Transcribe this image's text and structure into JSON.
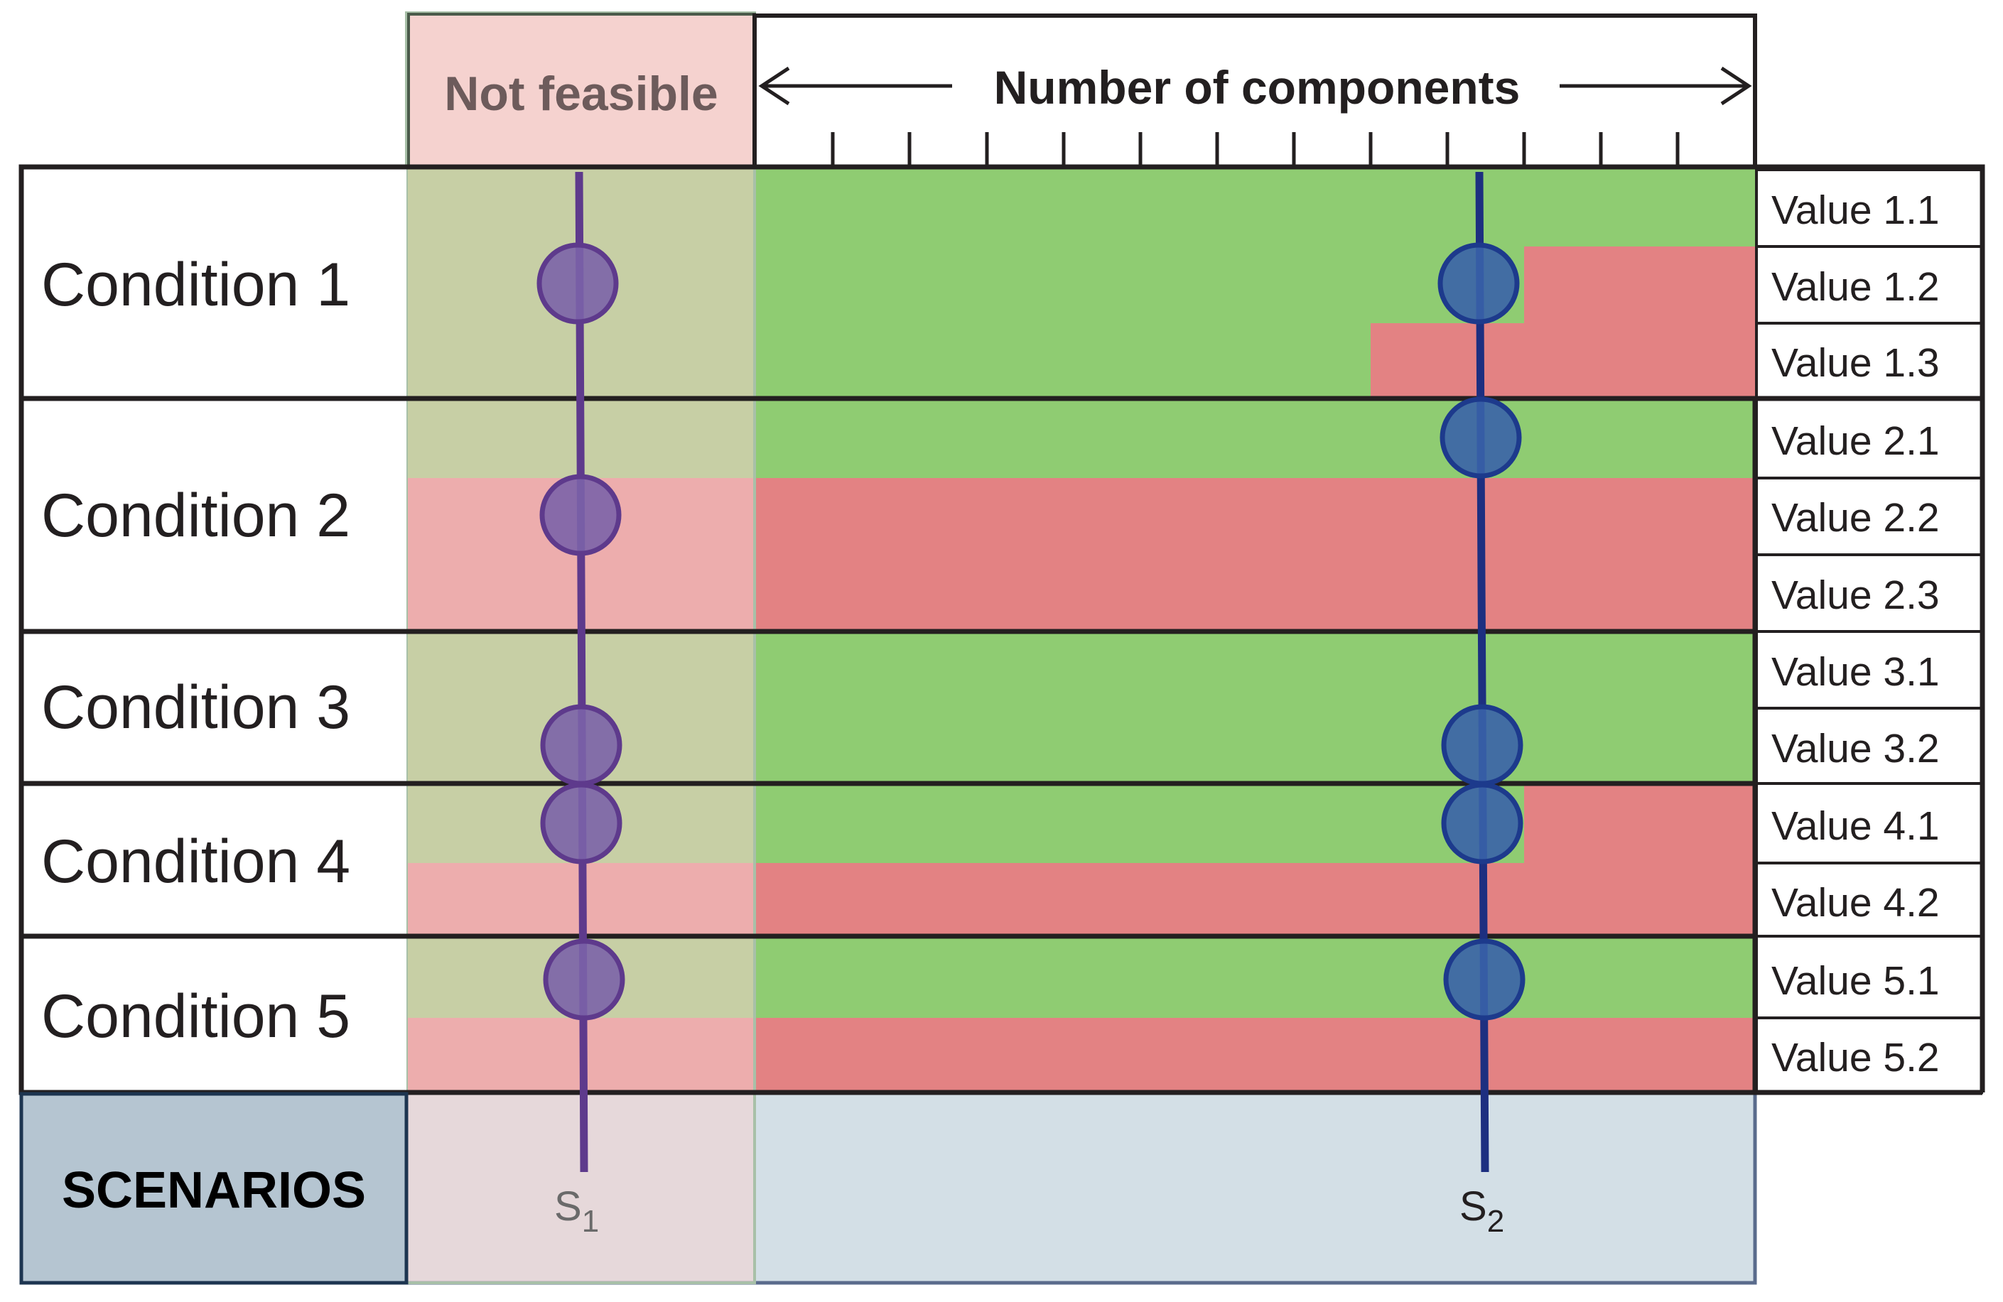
{
  "header": {
    "not_feasible": "Not feasible",
    "axis_label": "Number of components"
  },
  "conditions": [
    {
      "label": "Condition 1",
      "values": [
        "Value 1.1",
        "Value 1.2",
        "Value 1.3"
      ]
    },
    {
      "label": "Condition 2",
      "values": [
        "Value 2.1",
        "Value 2.2",
        "Value 2.3"
      ]
    },
    {
      "label": "Condition 3",
      "values": [
        "Value 3.1",
        "Value 3.2"
      ]
    },
    {
      "label": "Condition 4",
      "values": [
        "Value 4.1",
        "Value 4.2"
      ]
    },
    {
      "label": "Condition 5",
      "values": [
        "Value 5.1",
        "Value 5.2"
      ]
    }
  ],
  "scenarios": {
    "label": "SCENARIOS",
    "s1": {
      "base": "S",
      "sub": "1"
    },
    "s2": {
      "base": "S",
      "sub": "2"
    }
  },
  "colors": {
    "feasible": "#8fcc72",
    "infeasible": "#e38283",
    "not_feasible_shade": "#f5d2cf",
    "s1_line": "#5e3a8c",
    "s2_line": "#1d2f80",
    "s1_marker": "#7b63a8",
    "s2_marker": "#3a63a8",
    "scenarios_box": "#b5c5d1",
    "scenario_area": "#d3dfe6"
  }
}
